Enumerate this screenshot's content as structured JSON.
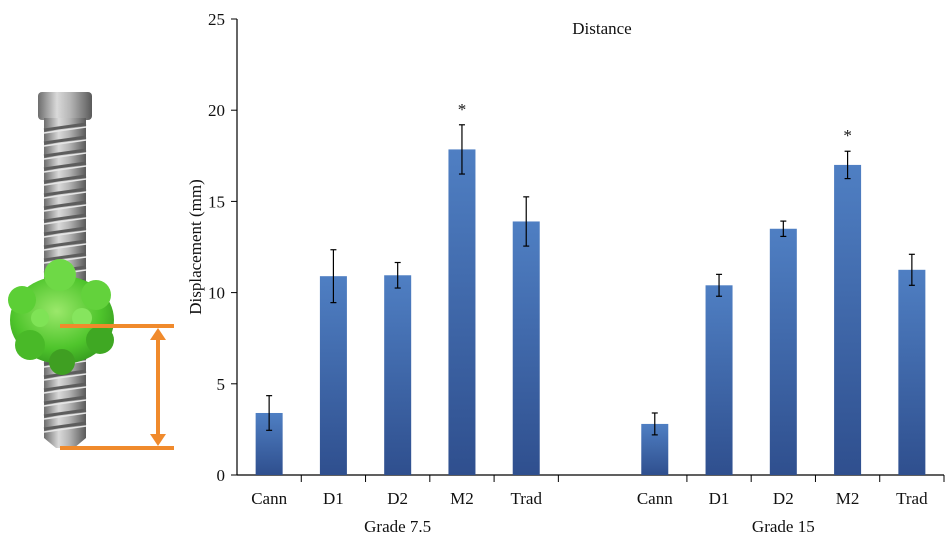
{
  "chart_data": {
    "type": "bar",
    "title": "Distance",
    "ylabel": "Displacement (mm)",
    "xlabel": "",
    "ylim": [
      0,
      25
    ],
    "yticks": [
      0,
      5,
      10,
      15,
      20,
      25
    ],
    "grid": false,
    "groups": [
      {
        "name": "Grade 7.5",
        "categories": [
          "Cann",
          "D1",
          "D2",
          "M2",
          "Trad"
        ],
        "values": [
          3.4,
          10.9,
          10.95,
          17.85,
          13.9
        ],
        "errors": [
          0.95,
          1.45,
          0.7,
          1.35,
          1.35
        ],
        "annotations": [
          "",
          "",
          "",
          "*",
          ""
        ]
      },
      {
        "name": "Grade 15",
        "categories": [
          "Cann",
          "D1",
          "D2",
          "M2",
          "Trad"
        ],
        "values": [
          2.8,
          10.4,
          13.5,
          17.0,
          11.25
        ],
        "errors": [
          0.6,
          0.6,
          0.42,
          0.75,
          0.85
        ],
        "annotations": [
          "",
          "",
          "",
          "*",
          ""
        ]
      }
    ],
    "colors": {
      "bar_top": "#4f7fc3",
      "bar_bottom": "#2f4f8e",
      "axis": "#000000",
      "error": "#000000"
    }
  },
  "illustration": {
    "screw_color": "#9b9b9b",
    "bone_color": "#5fcf3a",
    "measure_color": "#f08a2c"
  }
}
